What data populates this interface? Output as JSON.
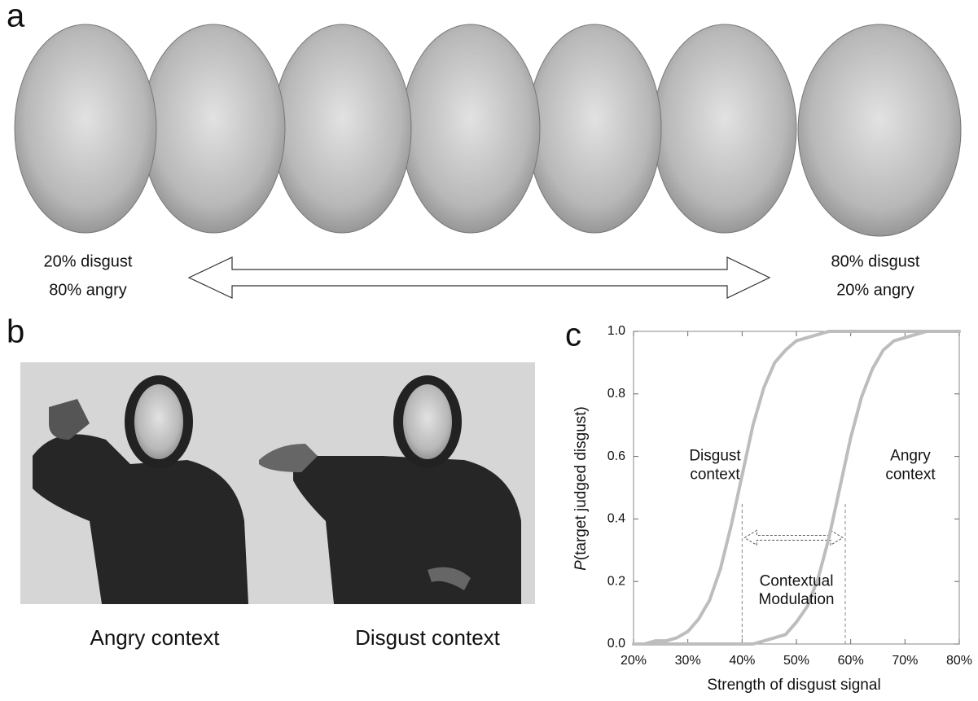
{
  "panel_a": {
    "label": "a",
    "left_labels": [
      "20% disgust",
      "80% angry"
    ],
    "right_labels": [
      "80% disgust",
      "20% angry"
    ]
  },
  "panel_b": {
    "label": "b",
    "captions": [
      "Angry context",
      "Disgust context"
    ]
  },
  "chart_data": {
    "type": "line",
    "panel_label": "c",
    "xlabel": "Strength of disgust signal",
    "ylabel_variable": "P",
    "ylabel": "(target judged disgust)",
    "x": [
      20,
      22,
      24,
      26,
      28,
      30,
      32,
      34,
      36,
      38,
      40,
      42,
      44,
      46,
      48,
      50,
      52,
      54,
      56,
      58,
      60,
      62,
      64,
      66,
      68,
      70,
      72,
      74,
      76,
      78,
      80
    ],
    "series": [
      {
        "name": "Disgust context",
        "color": "#bdbdbd",
        "values": [
          0.0,
          0.0,
          0.01,
          0.01,
          0.02,
          0.04,
          0.08,
          0.14,
          0.24,
          0.38,
          0.54,
          0.7,
          0.82,
          0.9,
          0.94,
          0.97,
          0.98,
          0.99,
          1.0,
          1.0,
          1.0,
          1.0,
          1.0,
          1.0,
          1.0,
          1.0,
          1.0,
          1.0,
          1.0,
          1.0,
          1.0
        ]
      },
      {
        "name": "Angry context",
        "color": "#bdbdbd",
        "values": [
          0.0,
          0.0,
          0.0,
          0.0,
          0.0,
          0.0,
          0.0,
          0.0,
          0.0,
          0.0,
          0.0,
          0.0,
          0.01,
          0.02,
          0.03,
          0.07,
          0.12,
          0.21,
          0.34,
          0.5,
          0.66,
          0.79,
          0.88,
          0.94,
          0.97,
          0.98,
          0.99,
          1.0,
          1.0,
          1.0,
          1.0
        ]
      }
    ],
    "annotations": [
      {
        "lines": [
          "Disgust",
          "context"
        ],
        "x": 35,
        "y": 0.57
      },
      {
        "lines": [
          "Angry",
          "context"
        ],
        "x": 71,
        "y": 0.57
      },
      {
        "lines": [
          "Contextual",
          "Modulation"
        ],
        "x": 50,
        "y": 0.17
      }
    ],
    "reference_x": [
      40,
      59
    ],
    "xlim": [
      20,
      80
    ],
    "ylim": [
      0,
      1
    ],
    "xticks": [
      {
        "value": 20,
        "label": "20%"
      },
      {
        "value": 30,
        "label": "30%"
      },
      {
        "value": 40,
        "label": "40%"
      },
      {
        "value": 50,
        "label": "50%"
      },
      {
        "value": 60,
        "label": "60%"
      },
      {
        "value": 70,
        "label": "70%"
      },
      {
        "value": 80,
        "label": "80%"
      }
    ],
    "yticks": [
      {
        "value": 0,
        "label": "0.0"
      },
      {
        "value": 0.2,
        "label": "0.2"
      },
      {
        "value": 0.4,
        "label": "0.4"
      },
      {
        "value": 0.6,
        "label": "0.6"
      },
      {
        "value": 0.8,
        "label": "0.8"
      },
      {
        "value": 1,
        "label": "1.0"
      }
    ]
  }
}
